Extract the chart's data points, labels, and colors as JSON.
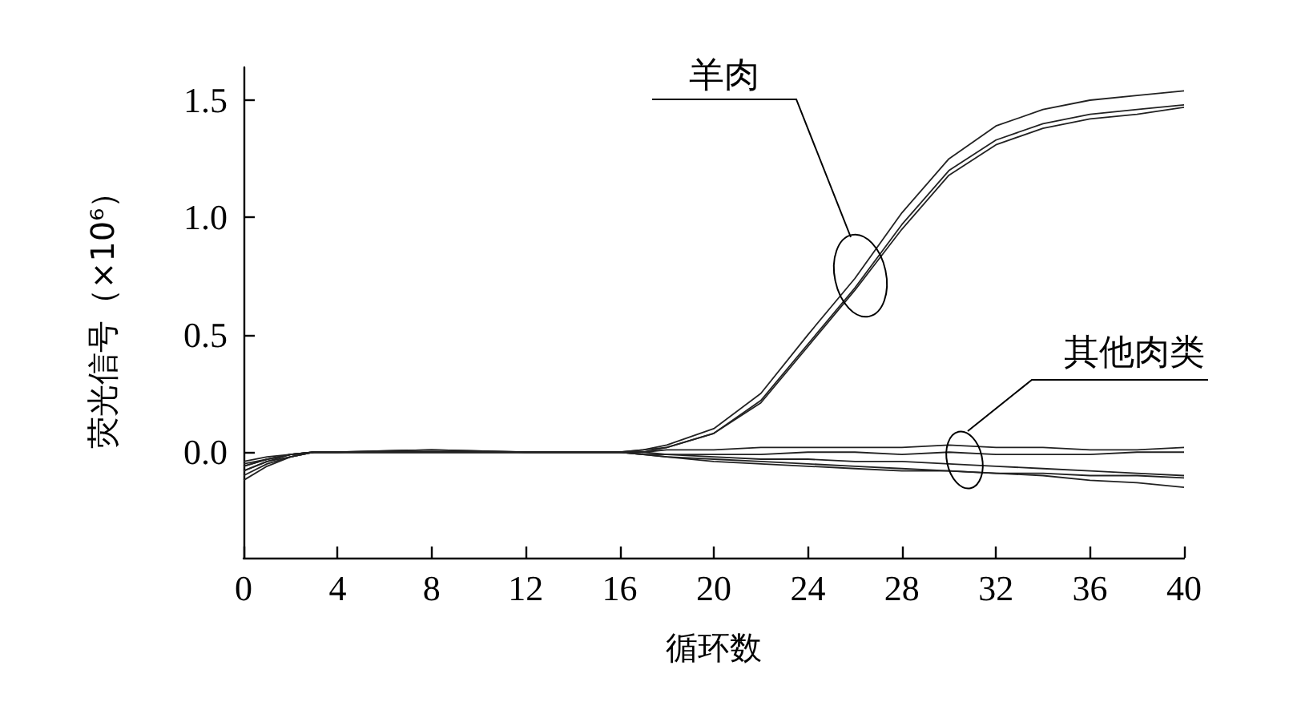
{
  "chart_data": {
    "type": "line",
    "xlabel": "循环数",
    "ylabel": "荧光信号（×10⁶）",
    "x": [
      0,
      1,
      2,
      3,
      4,
      8,
      12,
      16,
      17,
      18,
      20,
      22,
      24,
      26,
      28,
      30,
      32,
      34,
      36,
      38,
      40
    ],
    "xlim": [
      0,
      40
    ],
    "xticks": [
      0,
      4,
      8,
      12,
      16,
      20,
      24,
      28,
      32,
      36,
      40
    ],
    "ylim": [
      -0.45,
      1.64
    ],
    "yticks": [
      {
        "value": 0,
        "label": "0.0"
      },
      {
        "value": 0.5,
        "label": "0.5"
      },
      {
        "value": 1,
        "label": "1.0"
      },
      {
        "value": 1.5,
        "label": "1.5"
      }
    ],
    "grid": false,
    "marker": "none",
    "line_style": "solid",
    "series": [
      {
        "color": "#222222",
        "values": [
          -0.05,
          -0.03,
          -0.01,
          0,
          0,
          0,
          0,
          0,
          0.01,
          0.03,
          0.1,
          0.25,
          0.5,
          0.74,
          1.02,
          1.25,
          1.39,
          1.46,
          1.5,
          1.52,
          1.54
        ]
      },
      {
        "color": "#222222",
        "values": [
          -0.08,
          -0.04,
          -0.02,
          0,
          0,
          0,
          0,
          0,
          0.01,
          0.02,
          0.08,
          0.22,
          0.46,
          0.7,
          0.97,
          1.2,
          1.33,
          1.4,
          1.44,
          1.46,
          1.48
        ]
      },
      {
        "color": "#222222",
        "values": [
          -0.06,
          -0.03,
          -0.01,
          0,
          0,
          0.01,
          0,
          0,
          0,
          0.02,
          0.08,
          0.21,
          0.45,
          0.69,
          0.95,
          1.18,
          1.31,
          1.38,
          1.42,
          1.44,
          1.47
        ]
      },
      {
        "color": "#222222",
        "values": [
          -0.06,
          -0.03,
          -0.01,
          0,
          0,
          0.01,
          0,
          0,
          0,
          0.01,
          0.01,
          0.02,
          0.02,
          0.02,
          0.02,
          0.03,
          0.02,
          0.02,
          0.01,
          0.01,
          0.02
        ]
      },
      {
        "color": "#222222",
        "values": [
          -0.1,
          -0.05,
          -0.02,
          0,
          0,
          0,
          0,
          0,
          0,
          -0.01,
          -0.01,
          -0.01,
          0,
          0,
          -0.01,
          0,
          -0.01,
          -0.01,
          -0.01,
          0,
          0
        ]
      },
      {
        "color": "#222222",
        "values": [
          -0.08,
          -0.04,
          -0.01,
          0,
          0,
          0,
          0,
          0,
          -0.01,
          -0.01,
          -0.02,
          -0.03,
          -0.03,
          -0.04,
          -0.04,
          -0.05,
          -0.06,
          -0.07,
          -0.08,
          -0.09,
          -0.1
        ]
      },
      {
        "color": "#222222",
        "values": [
          -0.12,
          -0.06,
          -0.02,
          0,
          0,
          0,
          0,
          0,
          -0.01,
          -0.02,
          -0.03,
          -0.04,
          -0.05,
          -0.06,
          -0.07,
          -0.08,
          -0.09,
          -0.1,
          -0.12,
          -0.13,
          -0.15
        ]
      },
      {
        "color": "#222222",
        "values": [
          -0.04,
          -0.02,
          -0.01,
          0,
          0,
          0,
          0,
          0,
          -0.01,
          -0.02,
          -0.04,
          -0.05,
          -0.06,
          -0.07,
          -0.08,
          -0.08,
          -0.09,
          -0.09,
          -0.1,
          -0.1,
          -0.11
        ]
      }
    ],
    "annotations": [
      "羊肉",
      "其他肉类"
    ]
  }
}
